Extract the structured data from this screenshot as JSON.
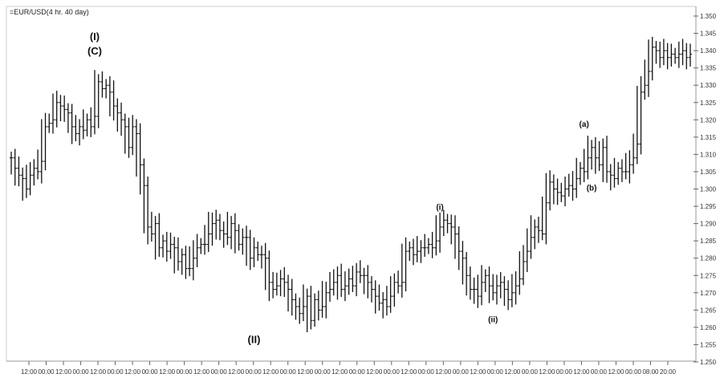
{
  "chart_data": {
    "type": "ohlc",
    "title": "=EUR/USD(4 hr. 40 day)",
    "xlabel": "",
    "ylabel": "",
    "ylim": [
      1.25,
      1.35
    ],
    "grid": false,
    "y_ticks": [
      "1.250",
      "1.255",
      "1.260",
      "1.265",
      "1.270",
      "1.275",
      "1.280",
      "1.285",
      "1.290",
      "1.295",
      "1.300",
      "1.305",
      "1.310",
      "1.315",
      "1.320",
      "1.325",
      "1.330",
      "1.335",
      "1.340",
      "1.345",
      "1.350"
    ],
    "x_ticks": [
      "12:00",
      "00:00",
      "12:00",
      "00:00",
      "12:00",
      "00:00",
      "12:00",
      "00:00",
      "12:00",
      "00:00",
      "12:00",
      "00:00",
      "12:00",
      "00:00",
      "12:00",
      "00:00",
      "12:00",
      "00:00",
      "12:00",
      "00:00",
      "12:00",
      "00:00",
      "12:00",
      "00:00",
      "12:00",
      "00:00",
      "12:00",
      "00:00",
      "12:00",
      "00:00",
      "12:00",
      "00:00",
      "12:00",
      "00:00",
      "12:00",
      "00:00",
      "08:00",
      "20:00"
    ],
    "close": [
      1.309,
      1.306,
      1.304,
      1.303,
      1.3,
      1.304,
      1.306,
      1.305,
      1.308,
      1.318,
      1.319,
      1.32,
      1.325,
      1.324,
      1.323,
      1.322,
      1.318,
      1.316,
      1.318,
      1.317,
      1.32,
      1.318,
      1.321,
      1.331,
      1.329,
      1.33,
      1.328,
      1.324,
      1.322,
      1.32,
      1.318,
      1.312,
      1.318,
      1.316,
      1.307,
      1.301,
      1.289,
      1.287,
      1.29,
      1.283,
      1.285,
      1.282,
      1.284,
      1.283,
      1.279,
      1.281,
      1.277,
      1.277,
      1.28,
      1.283,
      1.284,
      1.284,
      1.287,
      1.29,
      1.291,
      1.288,
      1.287,
      1.286,
      1.29,
      1.288,
      1.284,
      1.286,
      1.286,
      1.28,
      1.283,
      1.281,
      1.281,
      1.28,
      1.273,
      1.271,
      1.272,
      1.274,
      1.273,
      1.271,
      1.268,
      1.266,
      1.264,
      1.266,
      1.269,
      1.262,
      1.268,
      1.265,
      1.266,
      1.27,
      1.271,
      1.273,
      1.275,
      1.271,
      1.272,
      1.274,
      1.272,
      1.276,
      1.275,
      1.275,
      1.273,
      1.271,
      1.269,
      1.267,
      1.268,
      1.266,
      1.269,
      1.273,
      1.272,
      1.273,
      1.282,
      1.283,
      1.281,
      1.282,
      1.283,
      1.283,
      1.284,
      1.283,
      1.285,
      1.289,
      1.291,
      1.29,
      1.289,
      1.287,
      1.282,
      1.28,
      1.275,
      1.271,
      1.271,
      1.269,
      1.273,
      1.275,
      1.272,
      1.27,
      1.272,
      1.273,
      1.271,
      1.268,
      1.27,
      1.272,
      1.274,
      1.279,
      1.282,
      1.286,
      1.289,
      1.288,
      1.287,
      1.296,
      1.302,
      1.3,
      1.299,
      1.298,
      1.3,
      1.301,
      1.3,
      1.303,
      1.306,
      1.305,
      1.309,
      1.312,
      1.309,
      1.307,
      1.312,
      1.305,
      1.304,
      1.303,
      1.306,
      1.305,
      1.305,
      1.307,
      1.309,
      1.313,
      1.328,
      1.33,
      1.334,
      1.341,
      1.34,
      1.338,
      1.34,
      1.338,
      1.339,
      1.338,
      1.339,
      1.34,
      1.338,
      1.339
    ],
    "annotations": [
      {
        "lines": [
          "(I)",
          "(C)"
        ],
        "x_index": 22,
        "y": 1.343,
        "placement": "above-peak"
      },
      {
        "lines": [
          "(II)"
        ],
        "x_index": 64,
        "y": 1.2555,
        "placement": "below-low"
      },
      {
        "lines": [
          "(i)"
        ],
        "x_index": 113,
        "y": 1.294,
        "placement": "above-peak"
      },
      {
        "lines": [
          "(ii)"
        ],
        "x_index": 127,
        "y": 1.2615,
        "placement": "below-low"
      },
      {
        "lines": [
          "(a)"
        ],
        "x_index": 151,
        "y": 1.318,
        "placement": "above-peak"
      },
      {
        "lines": [
          "(b)"
        ],
        "x_index": 153,
        "y": 1.2995,
        "placement": "below-low"
      }
    ]
  }
}
